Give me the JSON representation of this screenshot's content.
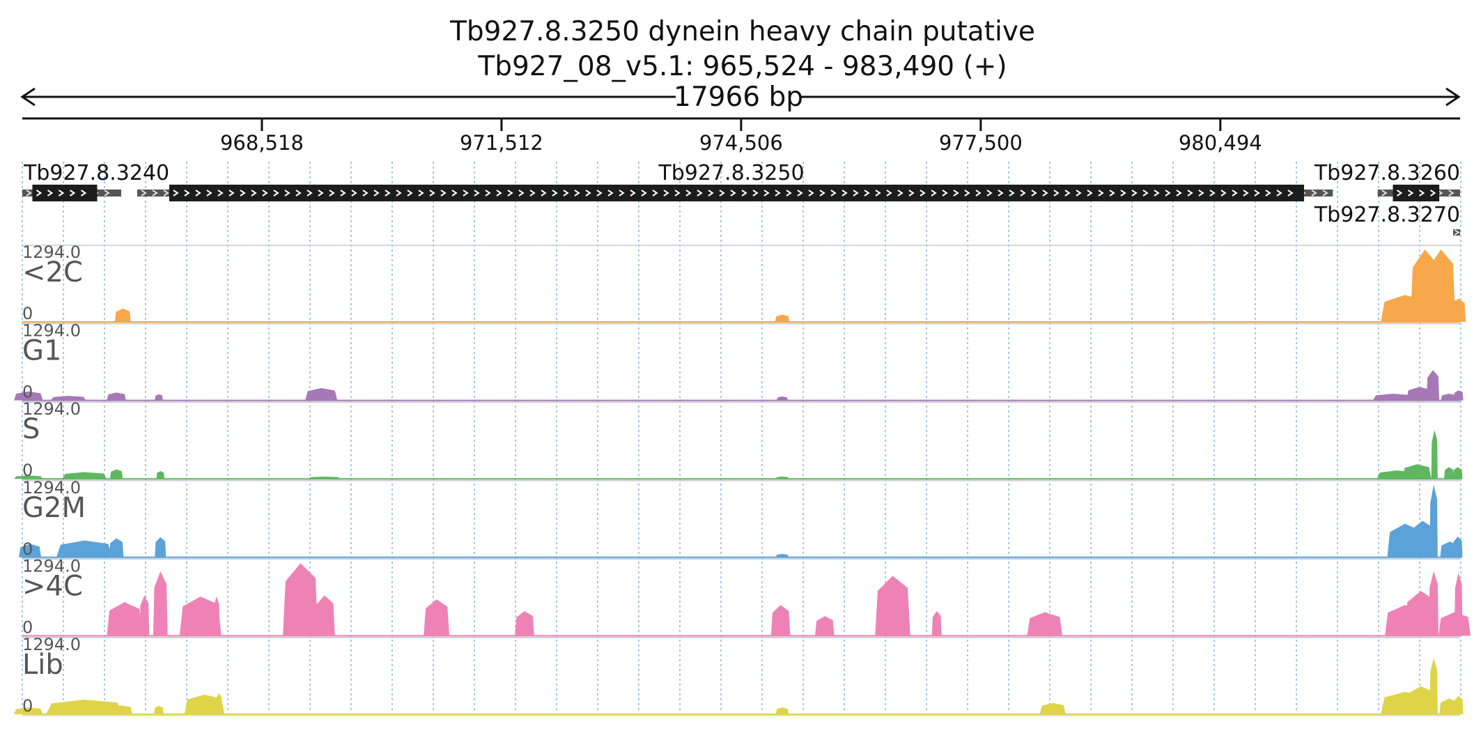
{
  "header": {
    "title": "Tb927.8.3250  dynein heavy chain  putative",
    "locus": "Tb927_08_v5.1: 965,524 - 983,490 (+)",
    "span_label": "17966 bp"
  },
  "axis": {
    "start": 965524,
    "end": 983490,
    "ticks": [
      {
        "value": 968518,
        "label": "968,518"
      },
      {
        "value": 971512,
        "label": "971,512"
      },
      {
        "value": 974506,
        "label": "974,506"
      },
      {
        "value": 977500,
        "label": "977,500"
      },
      {
        "value": 980494,
        "label": "980,494"
      }
    ]
  },
  "genes": [
    {
      "id": "Tb927.8.3240",
      "label": "Tb927.8.3240",
      "utr": [
        965524,
        966760
      ],
      "cds": [
        965650,
        966460
      ]
    },
    {
      "id": "Tb927.8.3250",
      "label": "Tb927.8.3250",
      "utr": [
        966960,
        981900
      ],
      "cds": [
        967360,
        981540
      ]
    },
    {
      "id": "Tb927.8.3260",
      "label": "Tb927.8.3260",
      "utr": [
        982460,
        983490
      ],
      "cds": [
        982650,
        983230
      ]
    },
    {
      "id": "Tb927.8.3270",
      "label": "Tb927.8.3270",
      "utr": [
        983410,
        983490
      ],
      "cds": null
    }
  ],
  "chart_data": {
    "type": "area",
    "x_unit": "bp",
    "xlim": [
      965524,
      983490
    ],
    "tracks": [
      {
        "name": "<2C",
        "color": "#f7a84a",
        "max_label": "1294.0",
        "min_label": "0",
        "ylim": [
          0,
          1294
        ],
        "peaks": [
          [
            966780,
            100,
            240
          ],
          [
            975020,
            90,
            130
          ],
          [
            982800,
            300,
            480
          ],
          [
            983050,
            180,
            1294
          ],
          [
            983250,
            180,
            1294
          ],
          [
            983380,
            130,
            420
          ],
          [
            983470,
            90,
            420
          ]
        ]
      },
      {
        "name": "G1",
        "color": "#a678b6",
        "max_label": "1294.0",
        "min_label": "0",
        "ylim": [
          0,
          1294
        ],
        "peaks": [
          [
            965600,
            180,
            160
          ],
          [
            966100,
            220,
            80
          ],
          [
            966700,
            120,
            140
          ],
          [
            967230,
            50,
            110
          ],
          [
            969260,
            200,
            220
          ],
          [
            975020,
            70,
            70
          ],
          [
            982650,
            250,
            120
          ],
          [
            982980,
            160,
            240
          ],
          [
            983150,
            80,
            540
          ],
          [
            983350,
            100,
            120
          ],
          [
            983470,
            60,
            180
          ]
        ]
      },
      {
        "name": "S",
        "color": "#5fb85f",
        "max_label": "1294.0",
        "min_label": "0",
        "ylim": [
          0,
          1294
        ],
        "peaks": [
          [
            965600,
            180,
            60
          ],
          [
            966300,
            280,
            120
          ],
          [
            966700,
            80,
            170
          ],
          [
            967250,
            50,
            140
          ],
          [
            969300,
            200,
            40
          ],
          [
            975020,
            80,
            40
          ],
          [
            982700,
            250,
            150
          ],
          [
            982950,
            180,
            260
          ],
          [
            983170,
            40,
            870
          ],
          [
            983350,
            60,
            210
          ],
          [
            983460,
            60,
            210
          ]
        ]
      },
      {
        "name": "G2M",
        "color": "#5aa2d8",
        "max_label": "1294.0",
        "min_label": "0",
        "ylim": [
          0,
          1294
        ],
        "peaks": [
          [
            965620,
            140,
            240
          ],
          [
            966300,
            350,
            300
          ],
          [
            966700,
            90,
            340
          ],
          [
            967250,
            70,
            360
          ],
          [
            975020,
            80,
            60
          ],
          [
            982800,
            220,
            600
          ],
          [
            983020,
            170,
            650
          ],
          [
            983160,
            50,
            1294
          ],
          [
            983360,
            120,
            280
          ],
          [
            983460,
            60,
            370
          ]
        ]
      },
      {
        "name": ">4C",
        "color": "#ef82b4",
        "max_label": "1294.0",
        "min_label": "0",
        "ylim": [
          0,
          1294
        ],
        "peaks": [
          [
            966800,
            220,
            600
          ],
          [
            967250,
            90,
            1150
          ],
          [
            967050,
            60,
            720
          ],
          [
            967750,
            260,
            700
          ],
          [
            967950,
            40,
            700
          ],
          [
            969000,
            220,
            1300
          ],
          [
            969300,
            130,
            720
          ],
          [
            970700,
            160,
            650
          ],
          [
            971800,
            120,
            440
          ],
          [
            975000,
            120,
            550
          ],
          [
            975550,
            120,
            350
          ],
          [
            976400,
            220,
            1070
          ],
          [
            976950,
            60,
            440
          ],
          [
            978300,
            220,
            420
          ],
          [
            982800,
            250,
            550
          ],
          [
            983000,
            200,
            800
          ],
          [
            983160,
            60,
            1150
          ],
          [
            983420,
            200,
            420
          ],
          [
            983470,
            50,
            1130
          ]
        ]
      },
      {
        "name": "Lib",
        "color": "#dfd447",
        "max_label": "1294.0",
        "min_label": "0",
        "ylim": [
          0,
          1294
        ],
        "peaks": [
          [
            965600,
            180,
            120
          ],
          [
            966300,
            480,
            260
          ],
          [
            966750,
            150,
            160
          ],
          [
            967230,
            60,
            150
          ],
          [
            967800,
            250,
            350
          ],
          [
            967980,
            40,
            380
          ],
          [
            975020,
            80,
            120
          ],
          [
            978400,
            160,
            200
          ],
          [
            982800,
            300,
            400
          ],
          [
            983000,
            180,
            500
          ],
          [
            983160,
            50,
            1000
          ],
          [
            983350,
            120,
            280
          ],
          [
            983470,
            60,
            330
          ]
        ]
      }
    ]
  }
}
